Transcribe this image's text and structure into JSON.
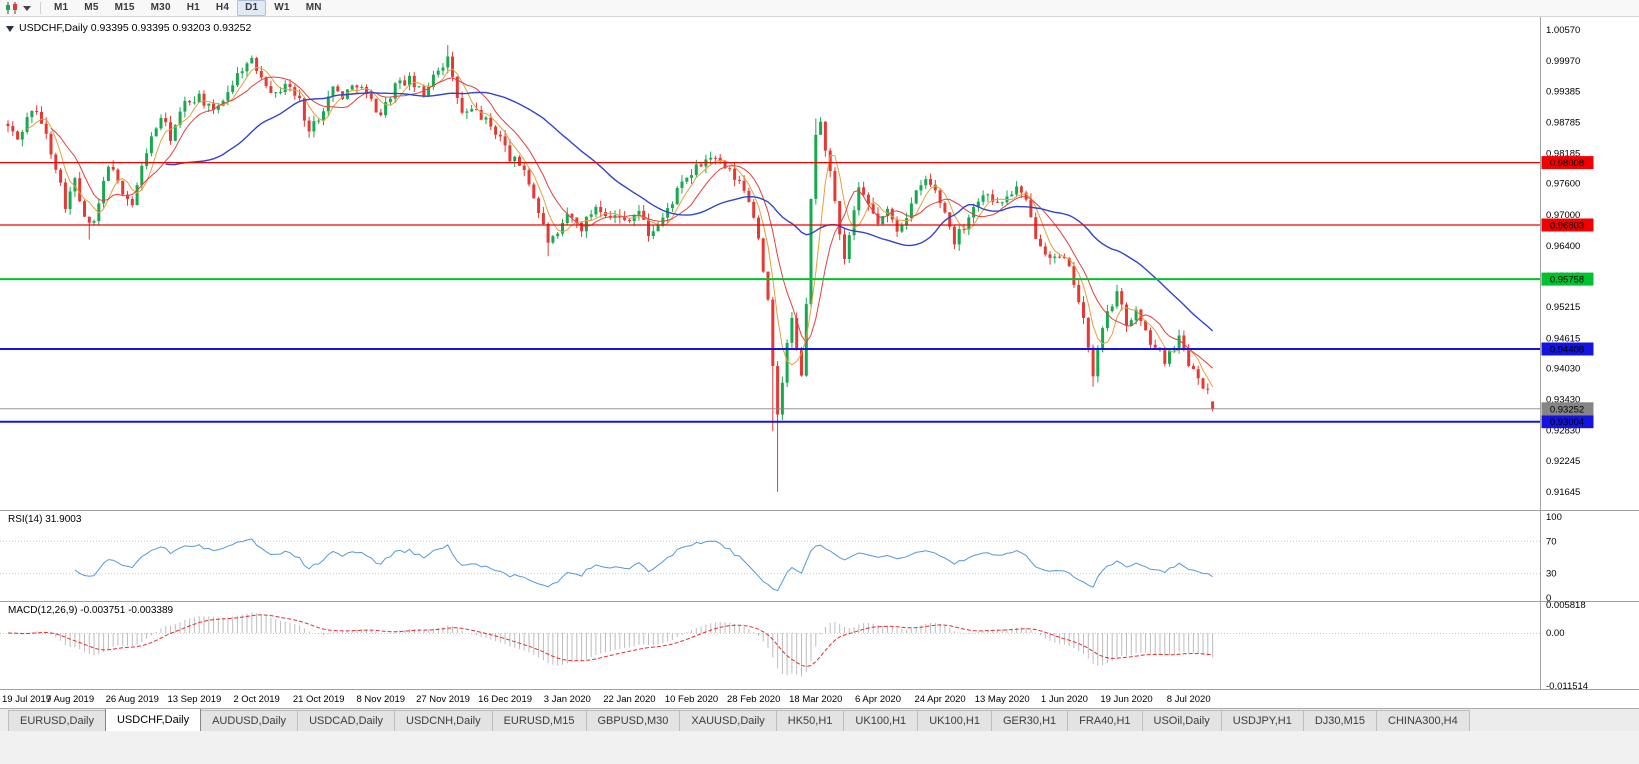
{
  "toolbar": {
    "timeframes": [
      {
        "label": "M1",
        "active": false
      },
      {
        "label": "M5",
        "active": false
      },
      {
        "label": "M15",
        "active": false
      },
      {
        "label": "M30",
        "active": false
      },
      {
        "label": "H1",
        "active": false
      },
      {
        "label": "H4",
        "active": false
      },
      {
        "label": "D1",
        "active": true
      },
      {
        "label": "W1",
        "active": false
      },
      {
        "label": "MN",
        "active": false
      }
    ]
  },
  "chart": {
    "title": "USDCHF,Daily 0.93395 0.93395 0.93203 0.93252",
    "symbol": "USDCHF",
    "period": "Daily",
    "ohlc": {
      "open": 0.93395,
      "high": 0.93395,
      "low": 0.93203,
      "close": 0.93252
    },
    "price_axis_labels": [
      "1.00570",
      "0.99970",
      "0.99385",
      "0.98785",
      "0.98185",
      "0.97600",
      "0.97000",
      "0.96400",
      "0.95815",
      "0.95215",
      "0.94615",
      "0.94030",
      "0.93430",
      "0.92830",
      "0.92245",
      "0.91645"
    ],
    "price_axis_top": 1.0057,
    "price_axis_bottom": 0.91645,
    "hlines": [
      {
        "value": 0.98008,
        "label": "0.98008",
        "color": "#f20000",
        "width": 1.2
      },
      {
        "value": 0.96803,
        "label": "0.96803",
        "color": "#f20000",
        "width": 1.2
      },
      {
        "value": 0.95758,
        "label": "0.95758",
        "color": "#00c22e",
        "width": 2
      },
      {
        "value": 0.94408,
        "label": "0.94408",
        "color": "#1414e0",
        "width": 2
      },
      {
        "value": 0.93004,
        "label": "0.93004",
        "color": "#1414e0",
        "width": 2
      }
    ],
    "bid_line": {
      "value": 0.93252,
      "label": "0.93252",
      "color": "#858585"
    },
    "colors": {
      "up": "#17a94f",
      "down": "#e53935",
      "ma_fast": "#e2a13c",
      "ma_mid": "#e04040",
      "ma_slow": "#3344cc",
      "axis_text": "#000000"
    }
  },
  "rsi_panel": {
    "label": "RSI(14) 31.9003",
    "value": 31.9003,
    "axis_labels": [
      "100",
      "70",
      "30",
      "0"
    ],
    "levels": [
      70,
      30
    ],
    "line_color": "#5599d8"
  },
  "macd_panel": {
    "label": "MACD(12,26,9) -0.003751 -0.003389",
    "main_value": -0.003751,
    "signal_value": -0.003389,
    "axis_labels": [
      "0.005818",
      "0.00",
      "-0.011514"
    ],
    "axis_max": 0.005818,
    "axis_min": -0.011514,
    "histogram_color": "#bdbdbd",
    "signal_color": "#e03030"
  },
  "time_axis": [
    "19 Jul 2019",
    "7 Aug 2019",
    "26 Aug 2019",
    "13 Sep 2019",
    "2 Oct 2019",
    "21 Oct 2019",
    "8 Nov 2019",
    "27 Nov 2019",
    "16 Dec 2019",
    "3 Jan 2020",
    "22 Jan 2020",
    "10 Feb 2020",
    "28 Feb 2020",
    "18 Mar 2020",
    "6 Apr 2020",
    "24 Apr 2020",
    "13 May 2020",
    "1 Jun 2020",
    "19 Jun 2020",
    "8 Jul 2020"
  ],
  "tabs": [
    {
      "label": "EURUSD,Daily",
      "active": false
    },
    {
      "label": "USDCHF,Daily",
      "active": true
    },
    {
      "label": "AUDUSD,Daily",
      "active": false
    },
    {
      "label": "USDCAD,Daily",
      "active": false
    },
    {
      "label": "USDCNH,Daily",
      "active": false
    },
    {
      "label": "EURUSD,M15",
      "active": false
    },
    {
      "label": "GBPUSD,M30",
      "active": false
    },
    {
      "label": "XAUUSD,Daily",
      "active": false
    },
    {
      "label": "HK50,H1",
      "active": false
    },
    {
      "label": "UK100,H1",
      "active": false
    },
    {
      "label": "UK100,H1",
      "active": false
    },
    {
      "label": "GER30,H1",
      "active": false
    },
    {
      "label": "FRA40,H1",
      "active": false
    },
    {
      "label": "USOil,Daily",
      "active": false
    },
    {
      "label": "USDJPY,H1",
      "active": false
    },
    {
      "label": "DJ30,M15",
      "active": false
    },
    {
      "label": "CHINA300,H4",
      "active": false
    }
  ],
  "chart_data": {
    "type": "candlestick",
    "symbol": "USDCHF Daily with SMA fast/mid/slow overlays, RSI(14) and MACD(12,26,9) subwindows",
    "bar_count": 253,
    "bars_per_label": 13,
    "price_path": [
      [
        0,
        0.987
      ],
      [
        2,
        0.9845
      ],
      [
        5,
        0.9905
      ],
      [
        7,
        0.988
      ],
      [
        10,
        0.9795
      ],
      [
        12,
        0.972
      ],
      [
        14,
        0.9765
      ],
      [
        16,
        0.969
      ],
      [
        18,
        0.968
      ],
      [
        21,
        0.98
      ],
      [
        23,
        0.976
      ],
      [
        26,
        0.972
      ],
      [
        29,
        0.9825
      ],
      [
        32,
        0.989
      ],
      [
        34,
        0.985
      ],
      [
        37,
        0.9915
      ],
      [
        40,
        0.993
      ],
      [
        43,
        0.9895
      ],
      [
        46,
        0.994
      ],
      [
        49,
        0.9985
      ],
      [
        51,
        0.9995
      ],
      [
        53,
        0.997
      ],
      [
        56,
        0.993
      ],
      [
        58,
        0.9955
      ],
      [
        61,
        0.992
      ],
      [
        63,
        0.986
      ],
      [
        65,
        0.989
      ],
      [
        68,
        0.9945
      ],
      [
        70,
        0.993
      ],
      [
        73,
        0.9955
      ],
      [
        75,
        0.993
      ],
      [
        78,
        0.9895
      ],
      [
        81,
        0.995
      ],
      [
        84,
        0.996
      ],
      [
        87,
        0.993
      ],
      [
        89,
        0.9975
      ],
      [
        92,
        1.0
      ],
      [
        93,
        0.996
      ],
      [
        95,
        0.9895
      ],
      [
        98,
        0.99
      ],
      [
        101,
        0.987
      ],
      [
        103,
        0.985
      ],
      [
        105,
        0.981
      ],
      [
        108,
        0.979
      ],
      [
        111,
        0.9705
      ],
      [
        113,
        0.965
      ],
      [
        115,
        0.9655
      ],
      [
        117,
        0.97
      ],
      [
        120,
        0.9675
      ],
      [
        123,
        0.9718
      ],
      [
        126,
        0.97
      ],
      [
        129,
        0.969
      ],
      [
        132,
        0.9708
      ],
      [
        134,
        0.9662
      ],
      [
        137,
        0.9692
      ],
      [
        140,
        0.9745
      ],
      [
        143,
        0.978
      ],
      [
        145,
        0.9798
      ],
      [
        147,
        0.9812
      ],
      [
        150,
        0.979
      ],
      [
        153,
        0.9762
      ],
      [
        155,
        0.973
      ],
      [
        157,
        0.966
      ],
      [
        158,
        0.9595
      ],
      [
        159,
        0.953
      ],
      [
        160,
        0.94
      ],
      [
        161,
        0.9315
      ],
      [
        162,
        0.938
      ],
      [
        163,
        0.9448
      ],
      [
        164,
        0.95
      ],
      [
        165,
        0.9435
      ],
      [
        166,
        0.9395
      ],
      [
        167,
        0.952
      ],
      [
        168,
        0.973
      ],
      [
        169,
        0.986
      ],
      [
        170,
        0.9875
      ],
      [
        171,
        0.983
      ],
      [
        172,
        0.978
      ],
      [
        173,
        0.972
      ],
      [
        174,
        0.9655
      ],
      [
        175,
        0.961
      ],
      [
        176,
        0.966
      ],
      [
        177,
        0.9705
      ],
      [
        178,
        0.9745
      ],
      [
        180,
        0.9718
      ],
      [
        182,
        0.9685
      ],
      [
        184,
        0.9705
      ],
      [
        186,
        0.9672
      ],
      [
        188,
        0.97
      ],
      [
        190,
        0.974
      ],
      [
        192,
        0.9768
      ],
      [
        194,
        0.9745
      ],
      [
        196,
        0.9705
      ],
      [
        198,
        0.965
      ],
      [
        200,
        0.968
      ],
      [
        202,
        0.9718
      ],
      [
        205,
        0.9745
      ],
      [
        207,
        0.9718
      ],
      [
        209,
        0.9735
      ],
      [
        211,
        0.9752
      ],
      [
        213,
        0.9722
      ],
      [
        215,
        0.9662
      ],
      [
        217,
        0.9632
      ],
      [
        219,
        0.9615
      ],
      [
        221,
        0.9612
      ],
      [
        223,
        0.9572
      ],
      [
        225,
        0.95
      ],
      [
        226,
        0.9435
      ],
      [
        227,
        0.9392
      ],
      [
        228,
        0.9438
      ],
      [
        230,
        0.9515
      ],
      [
        232,
        0.9545
      ],
      [
        234,
        0.9492
      ],
      [
        236,
        0.9512
      ],
      [
        238,
        0.947
      ],
      [
        240,
        0.9442
      ],
      [
        242,
        0.942
      ],
      [
        244,
        0.9452
      ],
      [
        245,
        0.9462
      ],
      [
        246,
        0.944
      ],
      [
        247,
        0.9415
      ],
      [
        249,
        0.9392
      ],
      [
        250,
        0.9372
      ],
      [
        251,
        0.9356
      ],
      [
        252,
        0.9325
      ]
    ],
    "extreme_wicks": [
      {
        "i": 17,
        "low": 0.9652
      },
      {
        "i": 51,
        "high": 1.0008
      },
      {
        "i": 92,
        "high": 1.0028
      },
      {
        "i": 113,
        "low": 0.962
      },
      {
        "i": 134,
        "low": 0.9648
      },
      {
        "i": 147,
        "high": 0.9822
      },
      {
        "i": 160,
        "low": 0.9282
      },
      {
        "i": 161,
        "low": 0.9165
      },
      {
        "i": 169,
        "high": 0.9886
      },
      {
        "i": 227,
        "low": 0.9368
      },
      {
        "i": 245,
        "high": 0.9478
      }
    ],
    "last_bar": {
      "open": 0.93395,
      "high": 0.93395,
      "low": 0.93203,
      "close": 0.93252
    }
  }
}
